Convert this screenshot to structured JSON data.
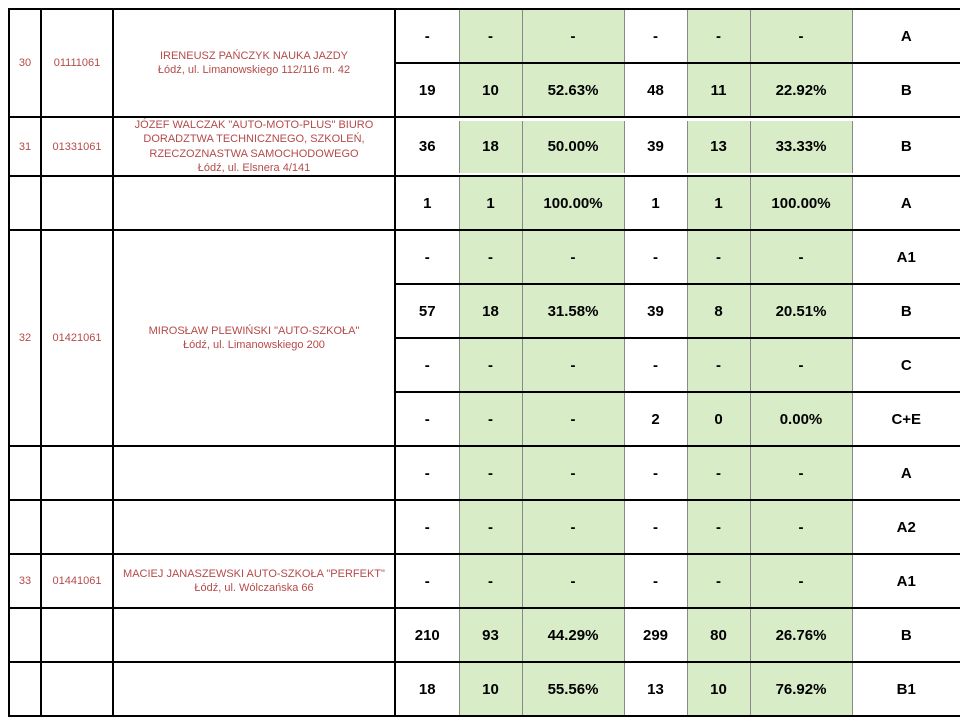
{
  "colors": {
    "green_bg": "#d8ecc8",
    "red_text": "#b54a4a",
    "border": "#000000",
    "cell_border": "#888888"
  },
  "rows": [
    {
      "no": "30",
      "id": "01111061",
      "desc": "IRENEUSZ PAŃCZYK NAUKA JAZDY\nŁódź, ul. Limanowskiego 112/116 m. 42",
      "lines": [
        {
          "a": "-",
          "b": "-",
          "c": "-",
          "d": "-",
          "e": "-",
          "f": "-",
          "g": "A"
        },
        {
          "a": "19",
          "b": "10",
          "c": "52.63%",
          "d": "48",
          "e": "11",
          "f": "22.92%",
          "g": "B"
        }
      ]
    },
    {
      "no": "31",
      "id": "01331061",
      "desc": "JÓZEF WALCZAK \"AUTO-MOTO-PLUS\" BIURO DORADZTWA TECHNICZNEGO, SZKOLEŃ, RZECZOZNASTWA SAMOCHODOWEGO\nŁódź, ul. Elsnera 4/141",
      "lines": [
        {
          "a": "36",
          "b": "18",
          "c": "50.00%",
          "d": "39",
          "e": "13",
          "f": "33.33%",
          "g": "B"
        }
      ]
    },
    {
      "no": "",
      "id": "",
      "desc": "",
      "lines": [
        {
          "a": "1",
          "b": "1",
          "c": "100.00%",
          "d": "1",
          "e": "1",
          "f": "100.00%",
          "g": "A"
        }
      ]
    },
    {
      "no": "32",
      "id": "01421061",
      "desc": "MIROSŁAW PLEWIŃSKI \"AUTO-SZKOŁA\"\nŁódź, ul. Limanowskiego 200",
      "lines": [
        {
          "a": "-",
          "b": "-",
          "c": "-",
          "d": "-",
          "e": "-",
          "f": "-",
          "g": "A1"
        },
        {
          "a": "57",
          "b": "18",
          "c": "31.58%",
          "d": "39",
          "e": "8",
          "f": "20.51%",
          "g": "B"
        },
        {
          "a": "-",
          "b": "-",
          "c": "-",
          "d": "-",
          "e": "-",
          "f": "-",
          "g": "C"
        },
        {
          "a": "-",
          "b": "-",
          "c": "-",
          "d": "2",
          "e": "0",
          "f": "0.00%",
          "g": "C+E"
        }
      ]
    },
    {
      "no": "",
      "id": "",
      "desc": "",
      "lines": [
        {
          "a": "-",
          "b": "-",
          "c": "-",
          "d": "-",
          "e": "-",
          "f": "-",
          "g": "A"
        }
      ]
    },
    {
      "no": "",
      "id": "",
      "desc": "",
      "lines": [
        {
          "a": "-",
          "b": "-",
          "c": "-",
          "d": "-",
          "e": "-",
          "f": "-",
          "g": "A2"
        }
      ]
    },
    {
      "no": "33",
      "id": "01441061",
      "desc": "MACIEJ JANASZEWSKI AUTO-SZKOŁA \"PERFEKT\"\nŁódź, ul. Wólczańska 66",
      "lines": [
        {
          "a": "-",
          "b": "-",
          "c": "-",
          "d": "-",
          "e": "-",
          "f": "-",
          "g": "A1"
        }
      ]
    },
    {
      "no": "",
      "id": "",
      "desc": "",
      "lines": [
        {
          "a": "210",
          "b": "93",
          "c": "44.29%",
          "d": "299",
          "e": "80",
          "f": "26.76%",
          "g": "B"
        }
      ]
    },
    {
      "no": "",
      "id": "",
      "desc": "",
      "lines": [
        {
          "a": "18",
          "b": "10",
          "c": "55.56%",
          "d": "13",
          "e": "10",
          "f": "76.92%",
          "g": "B1"
        }
      ]
    }
  ]
}
